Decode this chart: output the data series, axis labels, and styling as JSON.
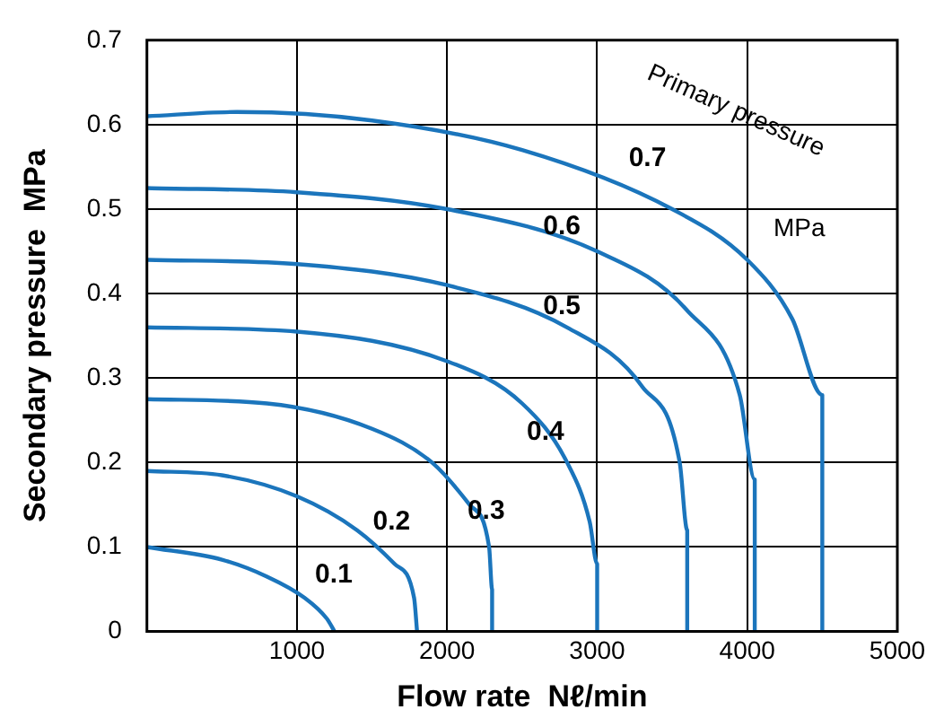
{
  "chart_data": {
    "type": "line",
    "xlabel": "Flow rate  Nℓ/min",
    "ylabel": "Secondary pressure  MPa",
    "xlim": [
      0,
      5000
    ],
    "xticks": [
      1000,
      2000,
      3000,
      4000,
      5000
    ],
    "ylim": [
      0,
      0.7
    ],
    "yticks": [
      0,
      0.1,
      0.2,
      0.3,
      0.4,
      0.5,
      0.6,
      0.7
    ],
    "grid": true,
    "legend": false,
    "marker": "none",
    "line_style": "solid",
    "series": [
      {
        "name": "0.1",
        "color": "#1b75bc",
        "x": [
          0,
          500,
          800,
          1050,
          1200,
          1250
        ],
        "values": [
          0.1,
          0.085,
          0.065,
          0.04,
          0.015,
          0
        ]
      },
      {
        "name": "0.2",
        "color": "#1b75bc",
        "x": [
          0,
          500,
          1000,
          1400,
          1650,
          1780,
          1800
        ],
        "values": [
          0.19,
          0.185,
          0.16,
          0.12,
          0.08,
          0.04,
          0
        ]
      },
      {
        "name": "0.3",
        "color": "#1b75bc",
        "x": [
          0,
          800,
          1500,
          1900,
          2150,
          2280,
          2300,
          2300
        ],
        "values": [
          0.275,
          0.27,
          0.24,
          0.2,
          0.15,
          0.1,
          0.05,
          0
        ]
      },
      {
        "name": "0.4",
        "color": "#1b75bc",
        "x": [
          0,
          1000,
          2000,
          2500,
          2800,
          2950,
          3000,
          3000
        ],
        "values": [
          0.36,
          0.355,
          0.32,
          0.27,
          0.2,
          0.13,
          0.08,
          0
        ]
      },
      {
        "name": "0.5",
        "color": "#1b75bc",
        "x": [
          0,
          1000,
          2000,
          2800,
          3300,
          3550,
          3600,
          3600
        ],
        "values": [
          0.44,
          0.435,
          0.41,
          0.36,
          0.29,
          0.2,
          0.12,
          0
        ]
      },
      {
        "name": "0.6",
        "color": "#1b75bc",
        "x": [
          0,
          1000,
          2000,
          3000,
          3600,
          3950,
          4050,
          4050
        ],
        "values": [
          0.525,
          0.52,
          0.5,
          0.45,
          0.38,
          0.28,
          0.18,
          0
        ]
      },
      {
        "name": "0.7",
        "color": "#1b75bc",
        "x": [
          0,
          600,
          1500,
          2500,
          3500,
          4000,
          4300,
          4500,
          4500
        ],
        "values": [
          0.61,
          0.615,
          0.605,
          0.57,
          0.5,
          0.44,
          0.37,
          0.28,
          0
        ]
      }
    ],
    "annotations": [
      "Primary pressure",
      "MPa"
    ]
  }
}
